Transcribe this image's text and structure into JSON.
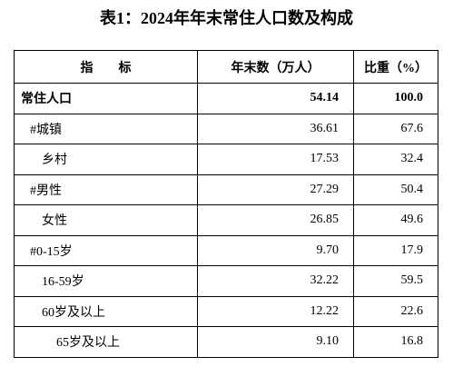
{
  "title": "表1：2024年年末常住人口数及构成",
  "table": {
    "header": [
      "指　　标",
      "年末数（万人）",
      "比重（%）"
    ],
    "rows": [
      [
        "常住人口",
        "54.14",
        "100.0"
      ],
      [
        "#城镇",
        "36.61",
        "67.6"
      ],
      [
        "乡村",
        "17.53",
        "32.4"
      ],
      [
        "#男性",
        "27.29",
        "50.4"
      ],
      [
        "女性",
        "26.85",
        "49.6"
      ],
      [
        "#0-15岁",
        "9.70",
        "17.9"
      ],
      [
        "16-59岁",
        "32.22",
        "59.5"
      ],
      [
        "60岁及以上",
        "12.22",
        "22.6"
      ],
      [
        "65岁及以上",
        "9.10",
        "16.8"
      ]
    ]
  }
}
